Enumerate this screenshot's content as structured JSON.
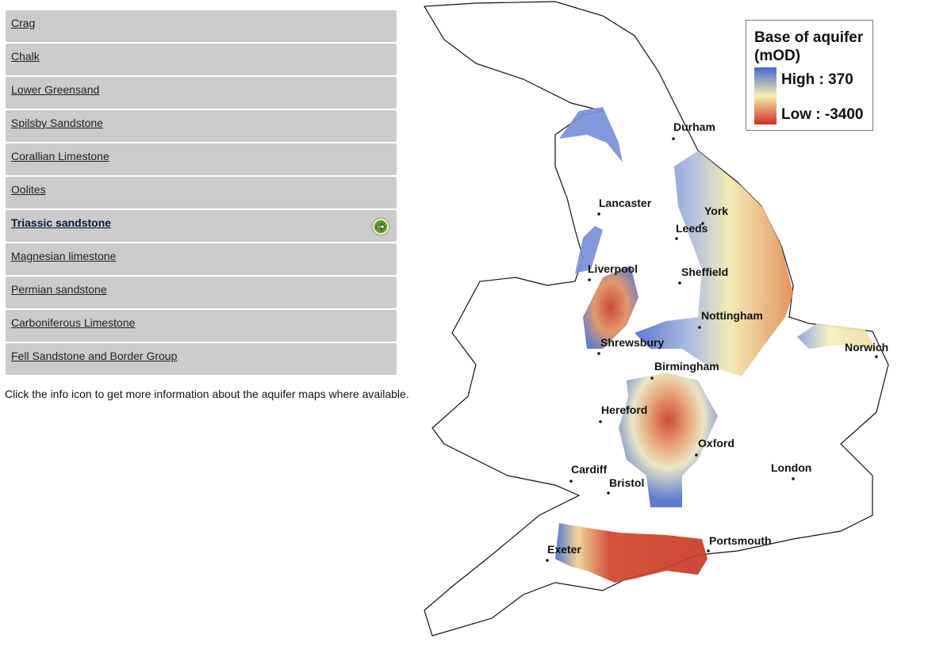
{
  "menu": {
    "items": [
      "Crag",
      "Chalk",
      "Lower Greensand",
      "Spilsby Sandstone",
      "Corallian Limestone",
      "Oolites",
      "Triassic sandstone",
      "Magnesian limestone",
      "Permian sandstone",
      "Carboniferous Limestone",
      "Fell Sandstone and Border Group"
    ],
    "selected": 6
  },
  "note": "Click the info icon to get more information about the aquifer maps where available.",
  "map": {
    "legend": {
      "title": "Base of aquifer (mOD)",
      "high": "High : 370",
      "low": "Low : -3400"
    },
    "cities": [
      "Durham",
      "Lancaster",
      "York",
      "Leeds",
      "Liverpool",
      "Sheffield",
      "Nottingham",
      "Shrewsbury",
      "Birmingham",
      "Norwich",
      "Hereford",
      "Oxford",
      "Cardiff",
      "Bristol",
      "London",
      "Exeter",
      "Portsmouth"
    ]
  }
}
